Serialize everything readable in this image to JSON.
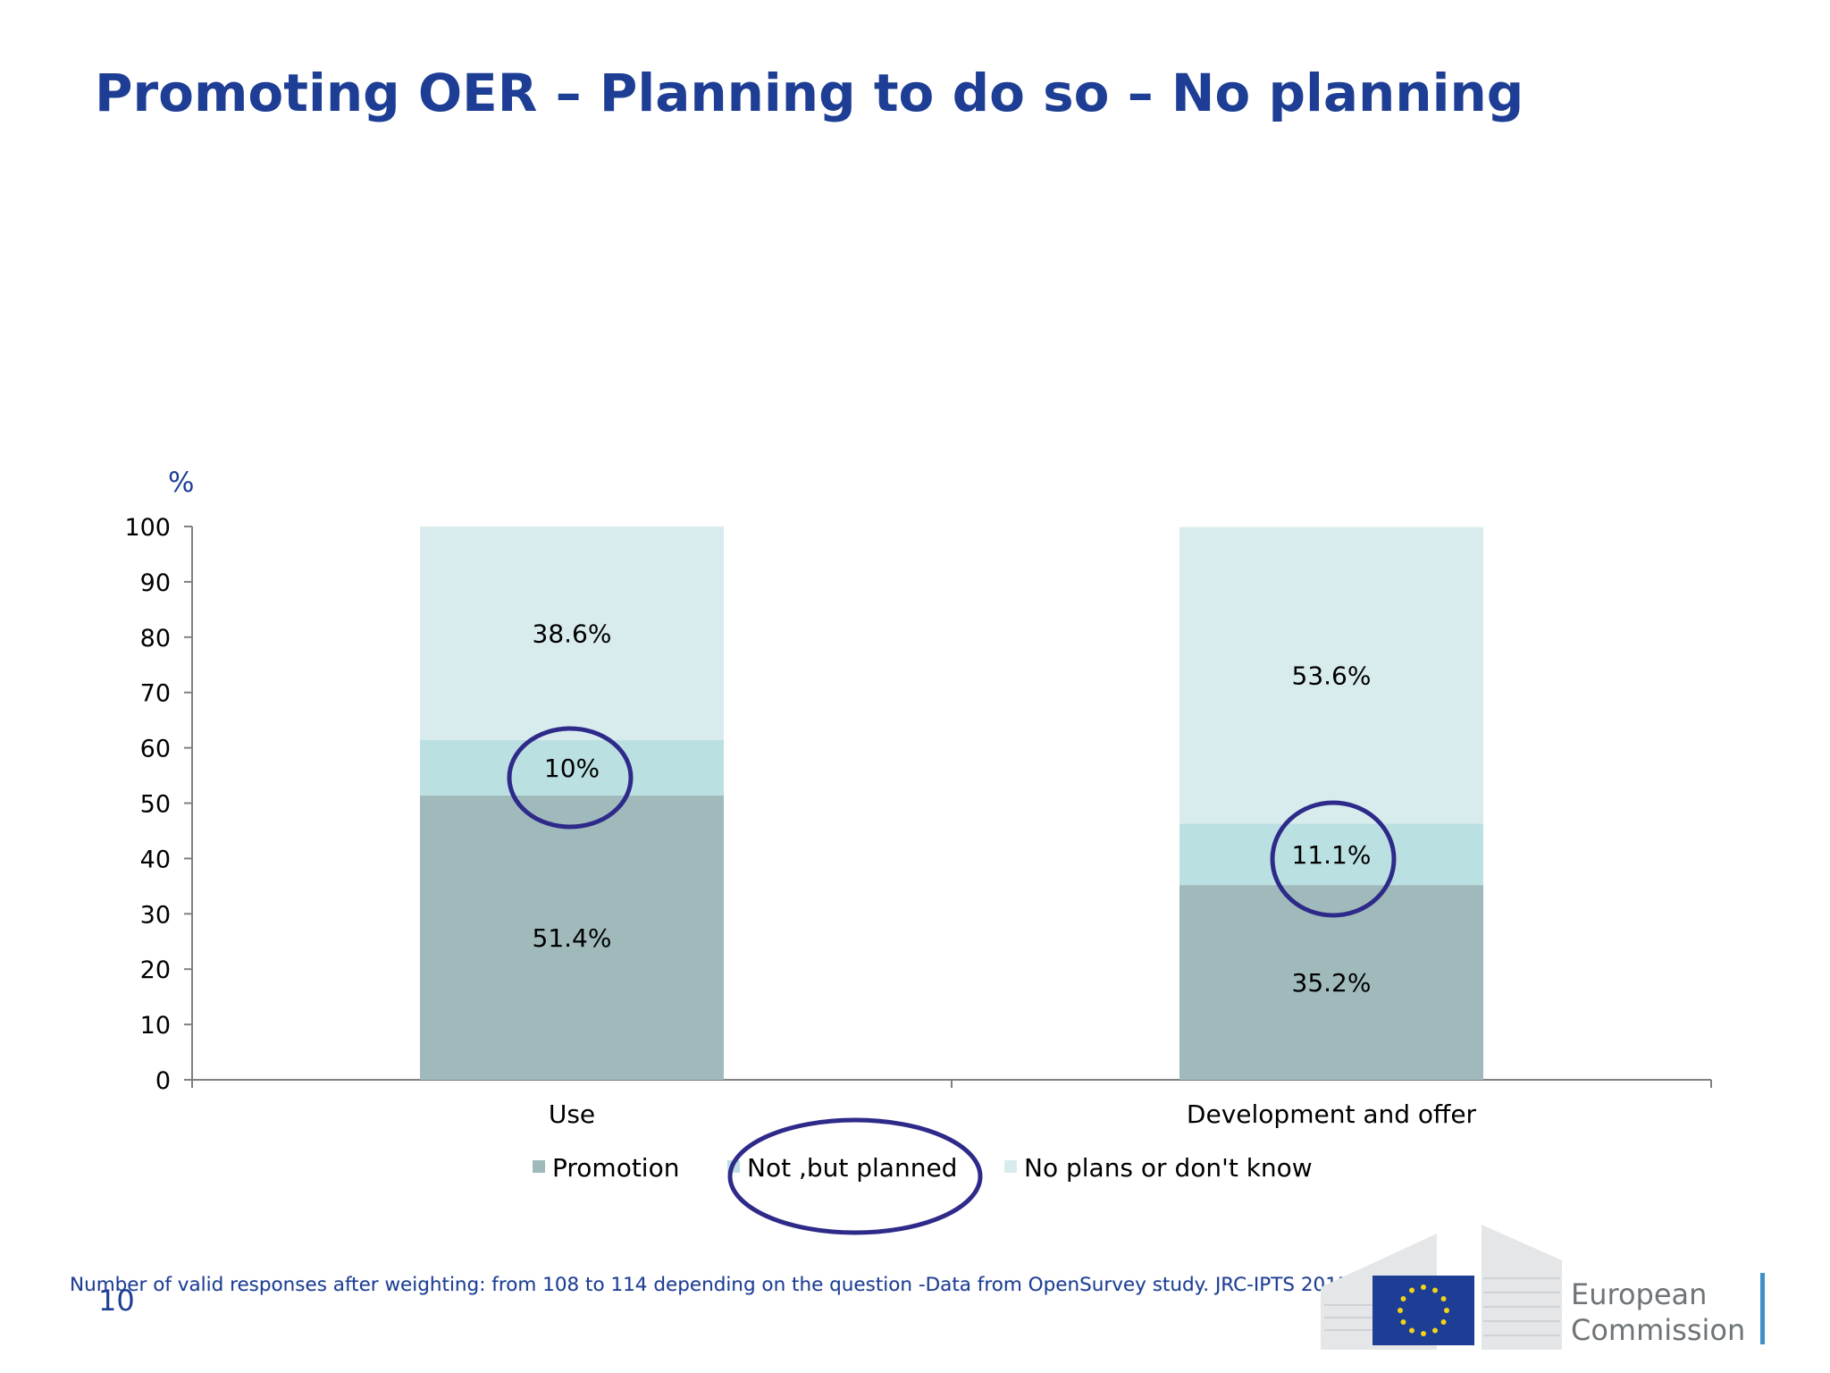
{
  "slide": {
    "title": "Promoting OER – Planning to do so – No planning",
    "footnote": "Number of valid responses after weighting: from 108 to 114 depending on the question -Data from OpenSurvey study. JRC-IPTS 2015",
    "page_number": "10",
    "logo": {
      "line1": "European",
      "line2": "Commission",
      "bar_color": "#3f8fc8",
      "flag_color": "#1d3e94"
    }
  },
  "chart_data": {
    "type": "bar",
    "stacked": true,
    "ylabel": "%",
    "ylim": [
      0,
      100
    ],
    "yticks": [
      "0",
      "10",
      "20",
      "30",
      "40",
      "50",
      "60",
      "70",
      "80",
      "90",
      "100"
    ],
    "categories": [
      "Use",
      "Development and offer"
    ],
    "series": [
      {
        "name": "Promotion",
        "values": [
          51.4,
          35.2
        ],
        "labels": [
          "51.4%",
          "35.2%"
        ],
        "color": "#a0babc"
      },
      {
        "name": "Not ,but planned",
        "values": [
          10,
          11.1
        ],
        "labels": [
          "10%",
          "11.1%"
        ],
        "color": "#bbe0e2"
      },
      {
        "name": "No plans or don't know",
        "values": [
          38.6,
          53.6
        ],
        "labels": [
          "38.6%",
          "53.6%"
        ],
        "color": "#d8ecee"
      }
    ],
    "legend_position": "bottom",
    "highlight_color": "#2e2a8a",
    "highlights": [
      "Use: 10%",
      "Development and offer: 11.1%",
      "legend: Not ,but planned"
    ]
  }
}
